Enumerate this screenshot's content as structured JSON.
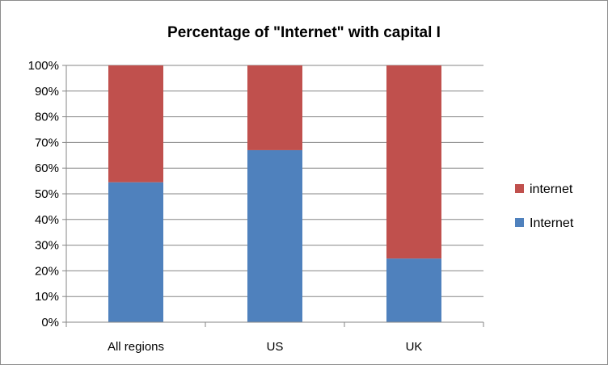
{
  "chart_data": {
    "type": "bar",
    "stacked": true,
    "percent": true,
    "title": "Percentage of \"Internet\" with capital I",
    "categories": [
      "All regions",
      "US",
      "UK"
    ],
    "series": [
      {
        "name": "Internet",
        "color": "#4f81bd",
        "values": [
          54.5,
          67,
          24.8
        ]
      },
      {
        "name": "internet",
        "color": "#c0504d",
        "values": [
          45.5,
          33,
          75.2
        ]
      }
    ],
    "ylim": [
      0,
      100
    ],
    "yticks": [
      "0%",
      "10%",
      "20%",
      "30%",
      "40%",
      "50%",
      "60%",
      "70%",
      "80%",
      "90%",
      "100%"
    ],
    "grid": true,
    "legend": "right",
    "legend_order": [
      "internet",
      "Internet"
    ]
  }
}
